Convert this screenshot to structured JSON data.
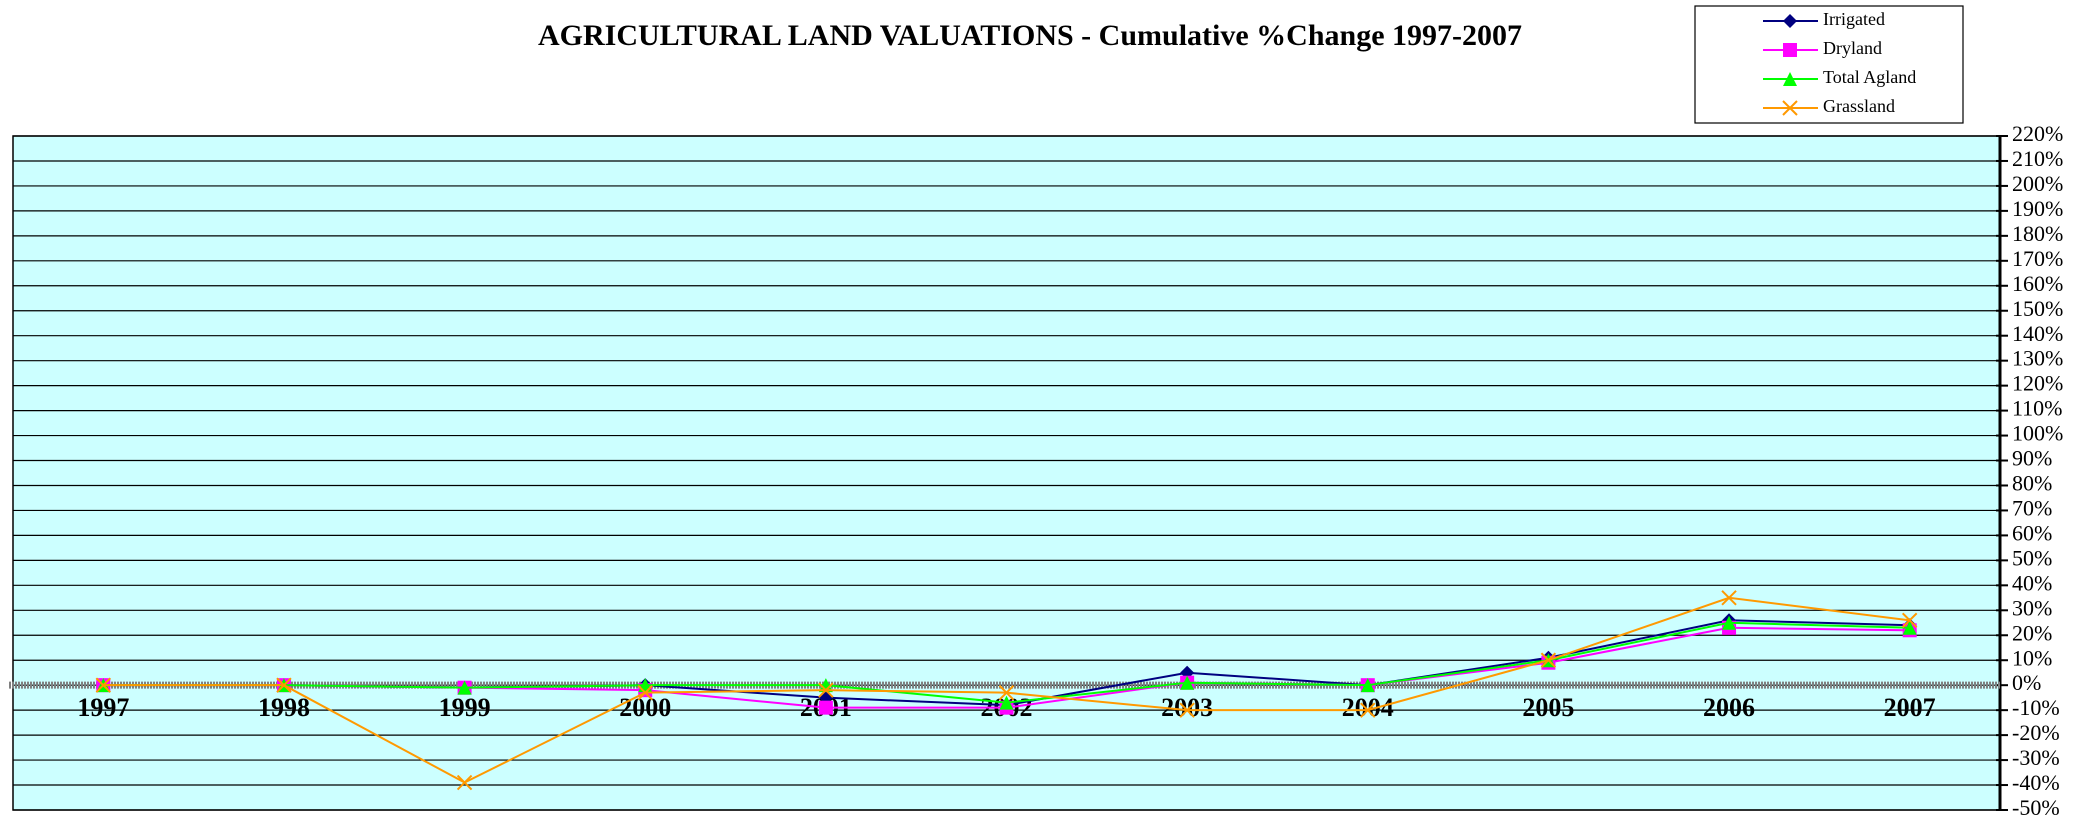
{
  "chart_data": {
    "type": "line",
    "title": "AGRICULTURAL LAND VALUATIONS - Cumulative  %Change 1997-2007",
    "categories": [
      "1997",
      "1998",
      "1999",
      "2000",
      "2001",
      "2002",
      "2003",
      "2004",
      "2005",
      "2006",
      "2007"
    ],
    "series": [
      {
        "name": "Irrigated",
        "color": "#000080",
        "marker": "diamond",
        "values": [
          0,
          0,
          -1,
          0,
          -5,
          -8,
          5,
          0,
          11,
          26,
          24
        ]
      },
      {
        "name": "Dryland",
        "color": "#ff00ff",
        "marker": "square",
        "values": [
          0,
          0,
          -1,
          -2,
          -9,
          -9,
          1,
          0,
          9,
          23,
          22
        ]
      },
      {
        "name": "Total Agland",
        "color": "#00ff00",
        "marker": "triangle",
        "values": [
          0,
          0,
          -1,
          0,
          0,
          -7,
          1,
          0,
          10,
          25,
          23
        ]
      },
      {
        "name": "Grassland",
        "color": "#ff9900",
        "marker": "x",
        "values": [
          0,
          0,
          -39,
          -3,
          -2,
          -3,
          -10,
          -10,
          10,
          35,
          26
        ]
      }
    ],
    "ylim": [
      -50,
      220
    ],
    "yticks": [
      {
        "value": -50,
        "label": "-50%"
      },
      {
        "value": -40,
        "label": "-40%"
      },
      {
        "value": -30,
        "label": "-30%"
      },
      {
        "value": -20,
        "label": "-20%"
      },
      {
        "value": -10,
        "label": "-10%"
      },
      {
        "value": 0,
        "label": "0%"
      },
      {
        "value": 10,
        "label": "10%"
      },
      {
        "value": 20,
        "label": "20%"
      },
      {
        "value": 30,
        "label": "30%"
      },
      {
        "value": 40,
        "label": "40%"
      },
      {
        "value": 50,
        "label": "50%"
      },
      {
        "value": 60,
        "label": "60%"
      },
      {
        "value": 70,
        "label": "70%"
      },
      {
        "value": 80,
        "label": "80%"
      },
      {
        "value": 90,
        "label": "90%"
      },
      {
        "value": 100,
        "label": "100%"
      },
      {
        "value": 110,
        "label": "110%"
      },
      {
        "value": 120,
        "label": "120%"
      },
      {
        "value": 130,
        "label": "130%"
      },
      {
        "value": 140,
        "label": "140%"
      },
      {
        "value": 150,
        "label": "150%"
      },
      {
        "value": 160,
        "label": "160%"
      },
      {
        "value": 170,
        "label": "170%"
      },
      {
        "value": 180,
        "label": "180%"
      },
      {
        "value": 190,
        "label": "190%"
      },
      {
        "value": 200,
        "label": "200%"
      },
      {
        "value": 210,
        "label": "210%"
      },
      {
        "value": 220,
        "label": "220%"
      }
    ],
    "grid": true,
    "legend": "top-right",
    "background": "#ccffff"
  }
}
